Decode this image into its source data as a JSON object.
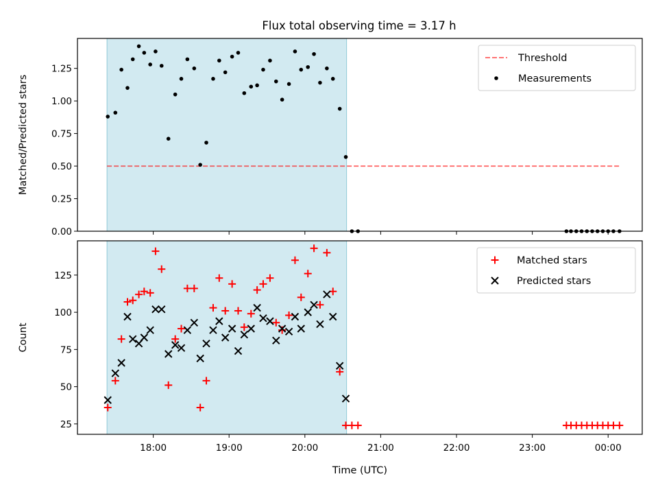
{
  "figure": {
    "title": "Flux total observing time = 3.17 h"
  },
  "colors": {
    "highlight": "#add8e6",
    "threshold": "#ff0000",
    "matched": "#ff0000",
    "predicted": "#000000",
    "measurement": "#000000"
  },
  "chart_data": [
    {
      "type": "scatter",
      "ylabel": "Matched/Predicted stars",
      "xlabel": "",
      "xlim": [
        17.0,
        24.45
      ],
      "ylim": [
        0.0,
        1.48
      ],
      "yticks": [
        0.0,
        0.25,
        0.5,
        0.75,
        1.0,
        1.25
      ],
      "ytick_labels": [
        "0.00",
        "0.25",
        "0.50",
        "0.75",
        "1.00",
        "1.25"
      ],
      "highlight_span": [
        17.39,
        20.55
      ],
      "threshold": {
        "name": "Threshold",
        "y": 0.5,
        "x": [
          17.39,
          24.15
        ]
      },
      "legend": {
        "position": "top-right",
        "entries": [
          "Threshold",
          "Measurements"
        ]
      },
      "series": [
        {
          "name": "Measurements",
          "marker": "dot",
          "x": [
            17.4,
            17.5,
            17.58,
            17.66,
            17.73,
            17.81,
            17.88,
            17.96,
            18.03,
            18.11,
            18.2,
            18.29,
            18.37,
            18.45,
            18.54,
            18.62,
            18.7,
            18.79,
            18.87,
            18.95,
            19.04,
            19.12,
            19.2,
            19.29,
            19.37,
            19.45,
            19.54,
            19.62,
            19.7,
            19.79,
            19.87,
            19.95,
            20.04,
            20.12,
            20.2,
            20.29,
            20.37,
            20.46,
            20.54,
            20.62,
            20.7,
            23.45,
            23.51,
            23.58,
            23.65,
            23.72,
            23.79,
            23.86,
            23.93,
            24.0,
            24.07,
            24.15
          ],
          "y": [
            0.88,
            0.91,
            1.24,
            1.1,
            1.32,
            1.42,
            1.37,
            1.28,
            1.38,
            1.27,
            0.71,
            1.05,
            1.17,
            1.32,
            1.25,
            0.51,
            0.68,
            1.17,
            1.31,
            1.22,
            1.34,
            1.37,
            1.06,
            1.11,
            1.12,
            1.24,
            1.31,
            1.15,
            1.01,
            1.13,
            1.38,
            1.24,
            1.26,
            1.36,
            1.14,
            1.25,
            1.17,
            0.94,
            0.57,
            0.0,
            0.0,
            0.0,
            0.0,
            0.0,
            0.0,
            0.0,
            0.0,
            0.0,
            0.0,
            0.0,
            0.0,
            0.0
          ]
        }
      ]
    },
    {
      "type": "scatter",
      "ylabel": "Count",
      "xlabel": "Time (UTC)",
      "xlim": [
        17.0,
        24.45
      ],
      "ylim": [
        18.0,
        148.0
      ],
      "yticks": [
        25,
        50,
        75,
        100,
        125
      ],
      "ytick_labels": [
        "25",
        "50",
        "75",
        "100",
        "125"
      ],
      "xticks": [
        18,
        19,
        20,
        21,
        22,
        23,
        24
      ],
      "xtick_labels": [
        "18:00",
        "19:00",
        "20:00",
        "21:00",
        "22:00",
        "23:00",
        "00:00"
      ],
      "highlight_span": [
        17.39,
        20.55
      ],
      "legend": {
        "position": "top-right",
        "entries": [
          "Matched stars",
          "Predicted stars"
        ]
      },
      "series": [
        {
          "name": "Matched stars",
          "marker": "plus",
          "x": [
            17.4,
            17.5,
            17.58,
            17.66,
            17.73,
            17.81,
            17.88,
            17.96,
            18.03,
            18.11,
            18.2,
            18.29,
            18.37,
            18.45,
            18.54,
            18.62,
            18.7,
            18.79,
            18.87,
            18.95,
            19.04,
            19.12,
            19.2,
            19.29,
            19.37,
            19.45,
            19.54,
            19.62,
            19.7,
            19.79,
            19.87,
            19.95,
            20.04,
            20.12,
            20.2,
            20.29,
            20.37,
            20.46,
            20.54,
            20.62,
            20.7,
            23.45,
            23.51,
            23.58,
            23.65,
            23.72,
            23.79,
            23.86,
            23.93,
            24.0,
            24.07,
            24.15
          ],
          "y": [
            36,
            54,
            82,
            107,
            108,
            112,
            114,
            113,
            141,
            129,
            51,
            82,
            89,
            116,
            116,
            36,
            54,
            103,
            123,
            101,
            119,
            101,
            90,
            99,
            115,
            119,
            123,
            93,
            88,
            98,
            135,
            110,
            126,
            143,
            105,
            140,
            114,
            60,
            24,
            24,
            24,
            24,
            24,
            24,
            24,
            24,
            24,
            24,
            24,
            24,
            24,
            24
          ]
        },
        {
          "name": "Predicted stars",
          "marker": "x",
          "x": [
            17.4,
            17.5,
            17.58,
            17.66,
            17.73,
            17.81,
            17.88,
            17.96,
            18.03,
            18.11,
            18.2,
            18.29,
            18.37,
            18.45,
            18.54,
            18.62,
            18.7,
            18.79,
            18.87,
            18.95,
            19.04,
            19.12,
            19.2,
            19.29,
            19.37,
            19.45,
            19.54,
            19.62,
            19.7,
            19.79,
            19.87,
            19.95,
            20.04,
            20.12,
            20.2,
            20.29,
            20.37,
            20.46,
            20.54
          ],
          "y": [
            41,
            59,
            66,
            97,
            82,
            79,
            83,
            88,
            102,
            102,
            72,
            78,
            76,
            88,
            93,
            69,
            79,
            88,
            94,
            83,
            89,
            74,
            85,
            89,
            103,
            96,
            94,
            81,
            89,
            87,
            97,
            89,
            100,
            105,
            92,
            112,
            97,
            64,
            42
          ]
        }
      ]
    }
  ]
}
